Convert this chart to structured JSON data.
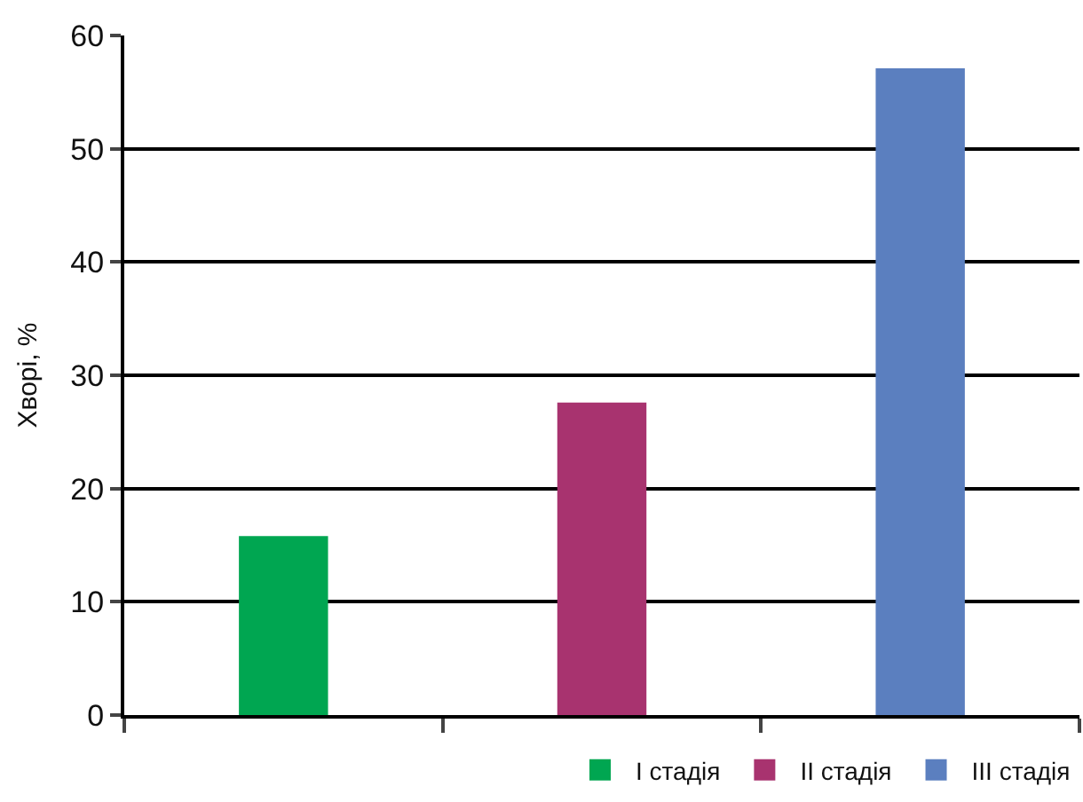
{
  "chart_data": {
    "type": "bar",
    "ylabel": "Хворі, %",
    "categories": [
      null,
      null,
      null
    ],
    "series": [
      {
        "name": "I стадія",
        "color": "#00a651",
        "values": [
          15.8,
          null,
          null
        ]
      },
      {
        "name": "II стадія",
        "color": "#a8336f",
        "values": [
          null,
          27.6,
          null
        ]
      },
      {
        "name": "III стадія",
        "color": "#5b7fbf",
        "values": [
          null,
          null,
          57.1
        ]
      }
    ],
    "ylim": [
      0,
      60
    ],
    "yticks": [
      0,
      10,
      20,
      30,
      40,
      50,
      60
    ],
    "grid": "y",
    "legend": "bottom right"
  }
}
